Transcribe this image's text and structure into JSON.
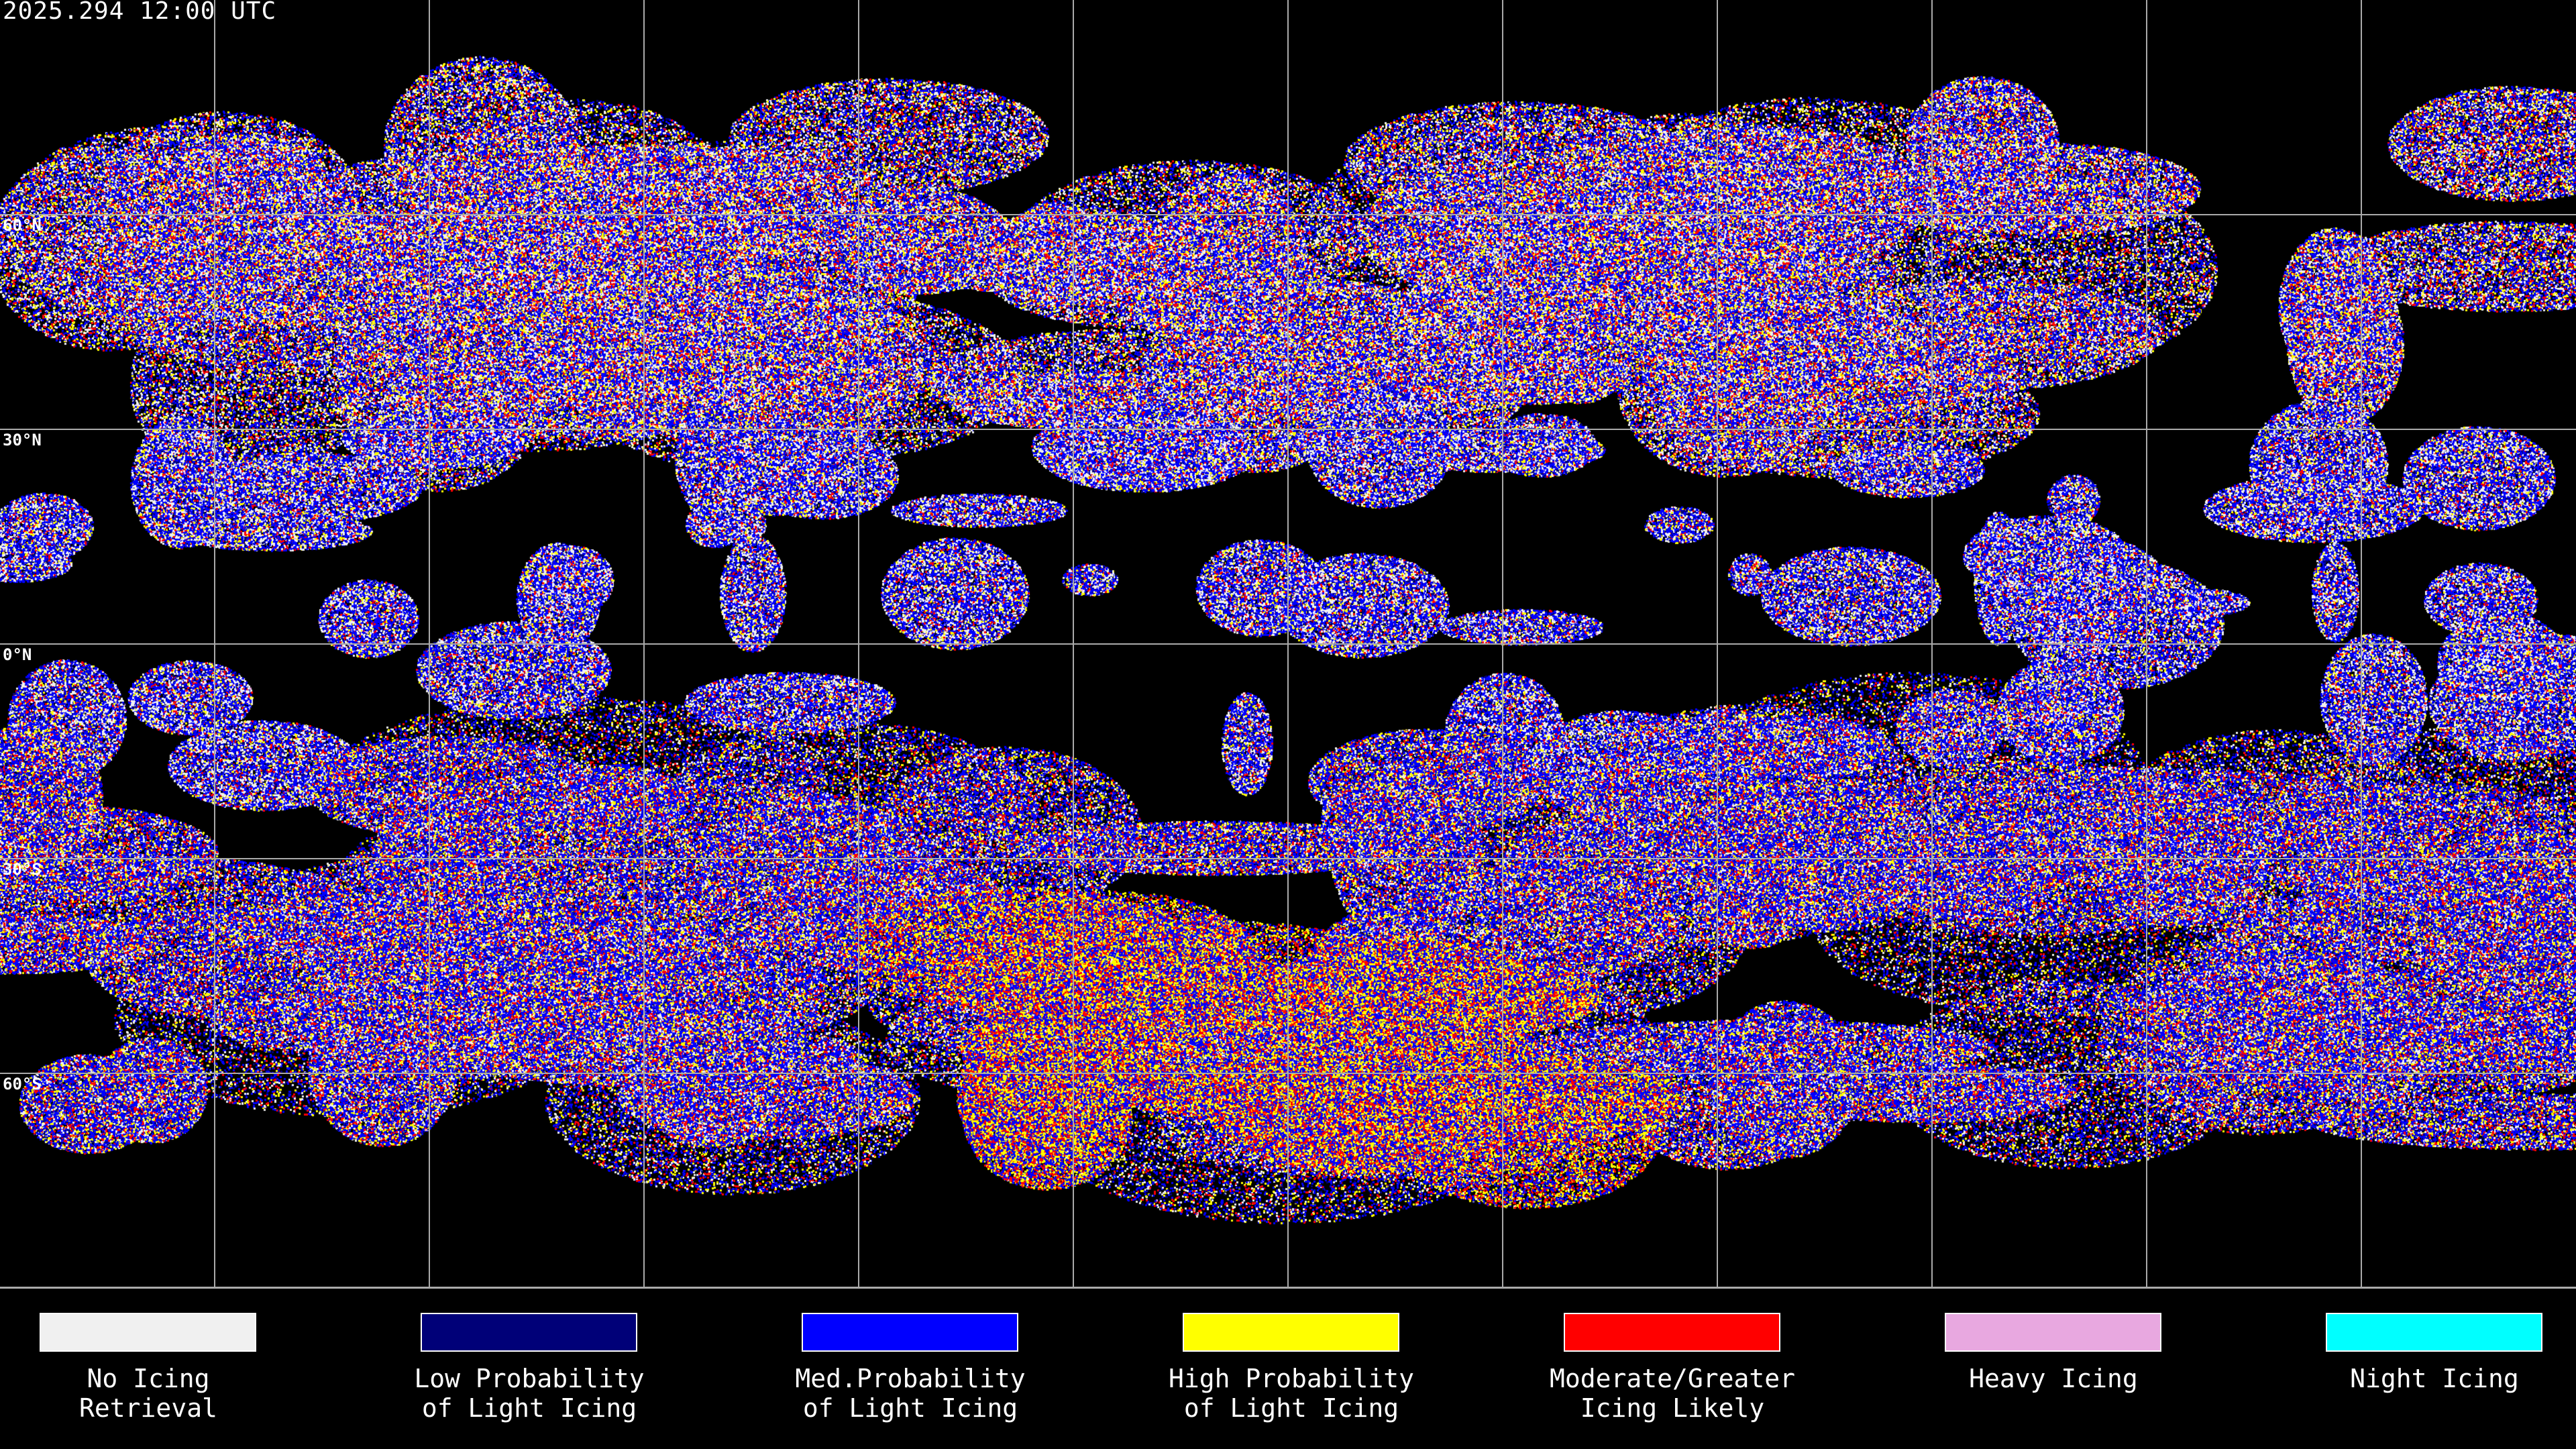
{
  "title": "2025.294 12:00 UTC",
  "latitude_labels": [
    "60°N",
    "30°N",
    "0°N",
    "30°S",
    "60°S"
  ],
  "legend": [
    {
      "label": "No Icing\nRetrieval",
      "color": "#f0f0f0"
    },
    {
      "label": "Low Probability\nof Light Icing",
      "color": "#000078"
    },
    {
      "label": "Med.Probability\nof Light Icing",
      "color": "#0000ff"
    },
    {
      "label": "High Probability\nof Light Icing",
      "color": "#ffff00"
    },
    {
      "label": "Moderate/Greater\nIcing Likely",
      "color": "#ff0000"
    },
    {
      "label": "Heavy Icing",
      "color": "#e8a8e0"
    },
    {
      "label": "Night Icing",
      "color": "#00ffff"
    }
  ]
}
